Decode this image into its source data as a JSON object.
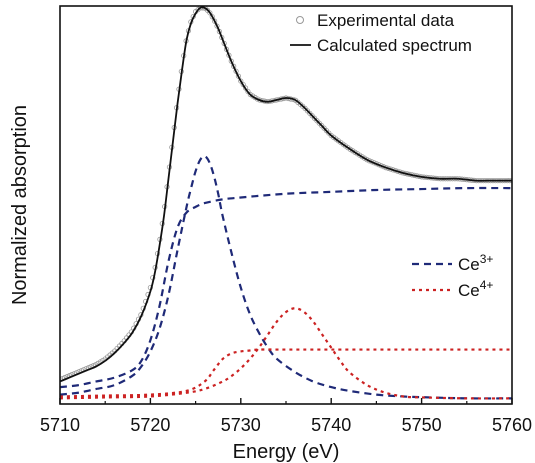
{
  "chart_data": {
    "type": "line",
    "xlabel": "Energy (eV)",
    "ylabel": "Normalized absorption",
    "xlim": [
      5710,
      5760
    ],
    "ylim": [
      0,
      2.12
    ],
    "x_ticks": [
      5710,
      5720,
      5730,
      5740,
      5750,
      5760
    ],
    "x_tick_labels": [
      "5710",
      "5720",
      "5730",
      "5740",
      "5750",
      "5760"
    ],
    "grid": false,
    "legend_top": [
      {
        "label": "Experimental data",
        "marker": "open-circle",
        "color": "#999999"
      },
      {
        "label": "Calculated spectrum",
        "style": "solid",
        "color": "#111111"
      }
    ],
    "legend_species": [
      {
        "base": "Ce",
        "sup": "3+",
        "style": "dashed",
        "color": "#1f2a78"
      },
      {
        "base": "Ce",
        "sup": "4+",
        "style": "dotted",
        "color": "#cc2222"
      }
    ],
    "series": [
      {
        "role": "experimental",
        "style": "markers",
        "color": "#999999",
        "x": [
          5710,
          5711,
          5712,
          5713,
          5714,
          5715,
          5716,
          5717,
          5718,
          5719,
          5720,
          5720.5,
          5721,
          5721.5,
          5722,
          5722.5,
          5723,
          5723.5,
          5724,
          5724.5,
          5725,
          5725.5,
          5726,
          5726.5,
          5727,
          5727.5,
          5728,
          5729,
          5730,
          5731,
          5732,
          5733,
          5734,
          5735,
          5736,
          5737,
          5738,
          5739,
          5740,
          5742,
          5744,
          5746,
          5748,
          5750,
          5752,
          5754,
          5756,
          5758,
          5760
        ],
        "y": [
          0.13,
          0.15,
          0.17,
          0.19,
          0.21,
          0.24,
          0.28,
          0.33,
          0.39,
          0.48,
          0.62,
          0.72,
          0.86,
          1.02,
          1.22,
          1.42,
          1.62,
          1.8,
          1.95,
          2.04,
          2.09,
          2.11,
          2.11,
          2.09,
          2.05,
          2.0,
          1.94,
          1.82,
          1.72,
          1.65,
          1.62,
          1.61,
          1.62,
          1.63,
          1.62,
          1.58,
          1.53,
          1.48,
          1.43,
          1.36,
          1.3,
          1.26,
          1.23,
          1.21,
          1.2,
          1.2,
          1.19,
          1.19,
          1.19
        ]
      },
      {
        "role": "calculated",
        "style": "solid",
        "color": "#111111",
        "x": [
          5710,
          5711,
          5712,
          5713,
          5714,
          5715,
          5716,
          5717,
          5718,
          5719,
          5720,
          5720.5,
          5721,
          5721.5,
          5722,
          5722.5,
          5723,
          5723.5,
          5724,
          5724.5,
          5725,
          5725.5,
          5726,
          5726.5,
          5727,
          5727.5,
          5728,
          5729,
          5730,
          5731,
          5732,
          5733,
          5734,
          5735,
          5736,
          5737,
          5738,
          5739,
          5740,
          5742,
          5744,
          5746,
          5748,
          5750,
          5752,
          5754,
          5756,
          5758,
          5760
        ],
        "y": [
          0.12,
          0.14,
          0.16,
          0.18,
          0.2,
          0.23,
          0.27,
          0.32,
          0.38,
          0.47,
          0.6,
          0.7,
          0.84,
          1.0,
          1.2,
          1.4,
          1.6,
          1.78,
          1.94,
          2.03,
          2.08,
          2.11,
          2.11,
          2.09,
          2.05,
          2.0,
          1.94,
          1.82,
          1.72,
          1.65,
          1.62,
          1.61,
          1.62,
          1.63,
          1.62,
          1.58,
          1.53,
          1.48,
          1.43,
          1.36,
          1.3,
          1.26,
          1.23,
          1.21,
          1.2,
          1.2,
          1.19,
          1.19,
          1.19
        ]
      },
      {
        "role": "Ce3+ step",
        "style": "dashed",
        "color": "#1f2a78",
        "x": [
          5710,
          5712,
          5714,
          5716,
          5718,
          5719,
          5720,
          5721,
          5722,
          5723,
          5724,
          5725,
          5726,
          5728,
          5730,
          5735,
          5740,
          5745,
          5750,
          5755,
          5760
        ],
        "y": [
          0.09,
          0.1,
          0.12,
          0.14,
          0.18,
          0.23,
          0.34,
          0.52,
          0.76,
          0.94,
          1.02,
          1.05,
          1.07,
          1.09,
          1.1,
          1.12,
          1.13,
          1.14,
          1.145,
          1.15,
          1.15
        ]
      },
      {
        "role": "Ce3+ peak",
        "style": "dashed",
        "color": "#1f2a78",
        "x": [
          5710,
          5712,
          5714,
          5716,
          5718,
          5719,
          5720,
          5721,
          5722,
          5723,
          5724,
          5724.5,
          5725,
          5725.5,
          5726,
          5726.5,
          5727,
          5727.5,
          5728,
          5729,
          5730,
          5731,
          5732,
          5733,
          5734,
          5736,
          5738,
          5740,
          5742,
          5745,
          5748,
          5751,
          5755,
          5760
        ],
        "y": [
          0.05,
          0.06,
          0.08,
          0.1,
          0.15,
          0.2,
          0.28,
          0.4,
          0.58,
          0.82,
          1.05,
          1.15,
          1.24,
          1.3,
          1.32,
          1.29,
          1.22,
          1.12,
          1.0,
          0.8,
          0.62,
          0.48,
          0.38,
          0.3,
          0.24,
          0.17,
          0.12,
          0.09,
          0.07,
          0.05,
          0.04,
          0.035,
          0.03,
          0.03
        ]
      },
      {
        "role": "Ce4+ step",
        "style": "dotted",
        "color": "#cc2222",
        "x": [
          5710,
          5715,
          5720,
          5724,
          5726,
          5727,
          5728,
          5729,
          5730,
          5731,
          5732,
          5734,
          5736,
          5740,
          5745,
          5750,
          5760
        ],
        "y": [
          0.04,
          0.045,
          0.05,
          0.07,
          0.12,
          0.18,
          0.24,
          0.27,
          0.28,
          0.285,
          0.29,
          0.29,
          0.29,
          0.29,
          0.29,
          0.29,
          0.29
        ]
      },
      {
        "role": "Ce4+ peak",
        "style": "dotted",
        "color": "#cc2222",
        "x": [
          5710,
          5715,
          5720,
          5724,
          5726,
          5728,
          5729,
          5730,
          5731,
          5732,
          5733,
          5734,
          5735,
          5736,
          5737,
          5738,
          5739,
          5740,
          5741,
          5742,
          5744,
          5746,
          5748,
          5750,
          5755,
          5760
        ],
        "y": [
          0.03,
          0.035,
          0.04,
          0.06,
          0.08,
          0.12,
          0.15,
          0.19,
          0.24,
          0.3,
          0.37,
          0.44,
          0.49,
          0.51,
          0.49,
          0.44,
          0.37,
          0.3,
          0.23,
          0.17,
          0.1,
          0.06,
          0.04,
          0.035,
          0.03,
          0.03
        ]
      }
    ]
  }
}
